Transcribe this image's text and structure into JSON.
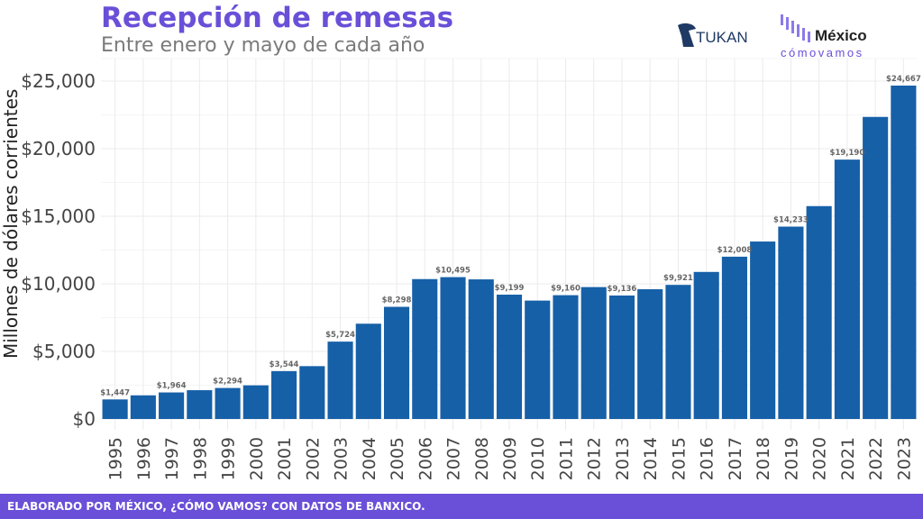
{
  "header": {
    "title": "Recepción de remesas",
    "subtitle": "Entre enero y mayo de cada año"
  },
  "logos": {
    "tukan": "TUKAN",
    "mexico": "México",
    "como_vamos": "cómovamos"
  },
  "footer": {
    "text": "ELABORADO POR MÉXICO, ¿CÓMO VAMOS? CON DATOS DE BANXICO."
  },
  "colors": {
    "bar": "#1660a8",
    "accent": "#6a4fd8",
    "label": "#666666"
  },
  "chart_data": {
    "type": "bar",
    "title": "Recepción de remesas",
    "subtitle": "Entre enero y mayo de cada año",
    "xlabel": "",
    "ylabel": "Millones de dólares corrientes",
    "ylim": [
      0,
      25000
    ],
    "yticks": [
      0,
      5000,
      10000,
      15000,
      20000,
      25000
    ],
    "ytick_labels": [
      "$0",
      "$5,000",
      "$10,000",
      "$15,000",
      "$20,000",
      "$25,000"
    ],
    "grid": true,
    "categories": [
      "1995",
      "1996",
      "1997",
      "1998",
      "1999",
      "2000",
      "2001",
      "2002",
      "2003",
      "2004",
      "2005",
      "2006",
      "2007",
      "2008",
      "2009",
      "2010",
      "2011",
      "2012",
      "2013",
      "2014",
      "2015",
      "2016",
      "2017",
      "2018",
      "2019",
      "2020",
      "2021",
      "2022",
      "2023"
    ],
    "values": [
      1447,
      1750,
      1964,
      2130,
      2294,
      2490,
      3544,
      3910,
      5724,
      7050,
      8298,
      10350,
      10495,
      10330,
      9199,
      8760,
      9160,
      9760,
      9136,
      9600,
      9921,
      10880,
      12008,
      13130,
      14233,
      15750,
      19190,
      22350,
      24667
    ],
    "data_labels": [
      "$1,447",
      "",
      "$1,964",
      "",
      "$2,294",
      "",
      "$3,544",
      "",
      "$5,724",
      "",
      "$8,298",
      "",
      "$10,495",
      "",
      "$9,199",
      "",
      "$9,160",
      "",
      "$9,136",
      "",
      "$9,921",
      "",
      "$12,008",
      "",
      "$14,233",
      "",
      "$19,190",
      "",
      "$24,667"
    ]
  }
}
